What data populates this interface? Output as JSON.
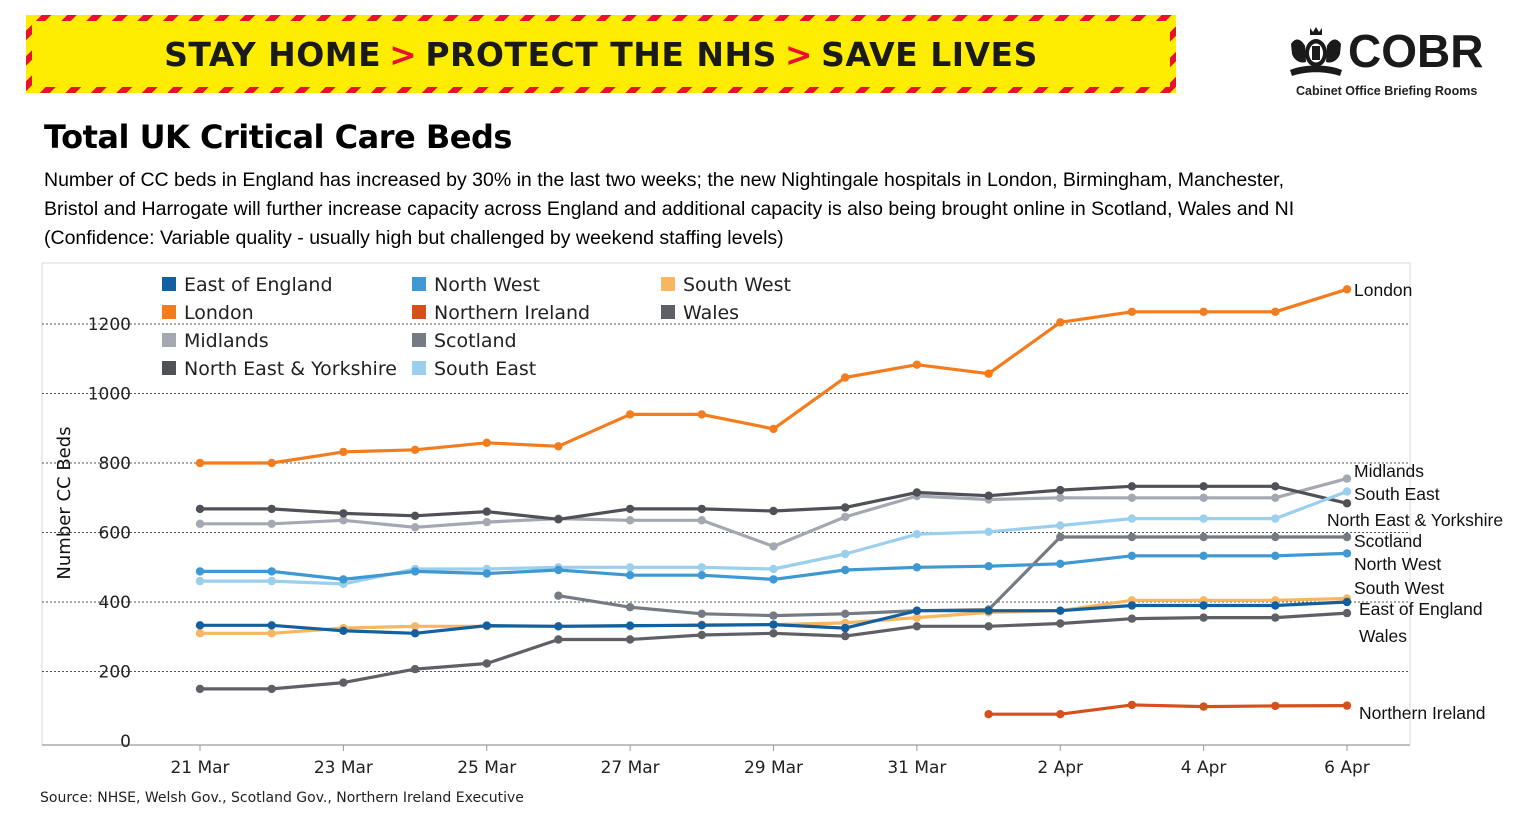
{
  "banner": {
    "part1": "STAY HOME",
    "part2": "PROTECT THE NHS",
    "part3": "SAVE LIVES",
    "separator": ">"
  },
  "logo": {
    "name": "COBR",
    "subtitle": "Cabinet Office Briefing Rooms",
    "icon": "royal-crest-icon"
  },
  "title": "Total UK Critical Care Beds",
  "subtitle": {
    "line1": "Number of CC beds in England has increased by 30% in the last two weeks; the new Nightingale hospitals in London, Birmingham, Manchester,",
    "line2": "Bristol and Harrogate will further increase capacity across England and additional capacity is also being brought online in Scotland, Wales and NI",
    "line3": "(Confidence: Variable quality - usually high but challenged by weekend staffing levels)"
  },
  "source": "Source: NHSE, Welsh Gov., Scotland Gov., Northern Ireland Executive",
  "colors": {
    "banner_yellow": "#ffed00",
    "banner_red": "#e8112d",
    "gridline": "#555555"
  },
  "chart_data": {
    "type": "line",
    "title": "Total UK Critical Care Beds",
    "xlabel": "",
    "ylabel": "Number CC Beds",
    "ylim": [
      -20,
      1330
    ],
    "yticks": [
      0,
      200,
      400,
      600,
      800,
      1000,
      1200
    ],
    "x": [
      "21 Mar",
      "22 Mar",
      "23 Mar",
      "24 Mar",
      "25 Mar",
      "26 Mar",
      "27 Mar",
      "28 Mar",
      "29 Mar",
      "30 Mar",
      "31 Mar",
      "1 Apr",
      "2 Apr",
      "3 Apr",
      "4 Apr",
      "5 Apr",
      "6 Apr"
    ],
    "xtick_labels": [
      "21 Mar",
      "23 Mar",
      "25 Mar",
      "27 Mar",
      "29 Mar",
      "31 Mar",
      "2 Apr",
      "4 Apr",
      "6 Apr"
    ],
    "xtick_indices": [
      0,
      2,
      4,
      6,
      8,
      10,
      12,
      14,
      16
    ],
    "grid": true,
    "legend_position": "top-left",
    "legend": [
      [
        "East of England",
        "North West",
        "South West"
      ],
      [
        "London",
        "Northern Ireland",
        "Wales"
      ],
      [
        "Midlands",
        "Scotland"
      ],
      [
        "North East & Yorkshire",
        "South East"
      ]
    ],
    "series": [
      {
        "name": "South West",
        "color": "#f8b661",
        "end_label": "South West",
        "values": [
          310,
          310,
          325,
          330,
          330,
          330,
          330,
          335,
          335,
          340,
          355,
          370,
          375,
          405,
          405,
          405,
          410
        ]
      },
      {
        "name": "Wales",
        "color": "#5f6066",
        "end_label": "Wales",
        "values": [
          150,
          150,
          168,
          207,
          223,
          292,
          292,
          305,
          310,
          302,
          330,
          330,
          338,
          352,
          355,
          355,
          368
        ]
      },
      {
        "name": "Scotland",
        "color": "#767a83",
        "end_label": "Scotland",
        "values": [
          null,
          null,
          null,
          null,
          null,
          418,
          385,
          366,
          361,
          366,
          375,
          378,
          587,
          587,
          587,
          587,
          587
        ]
      },
      {
        "name": "Northern Ireland",
        "color": "#d5501b",
        "end_label": "Northern Ireland",
        "values": [
          null,
          null,
          null,
          null,
          null,
          null,
          null,
          null,
          null,
          null,
          null,
          77,
          77,
          104,
          99,
          101,
          102
        ]
      },
      {
        "name": "Midlands",
        "color": "#a4a8b1",
        "end_label": "Midlands",
        "values": [
          625,
          625,
          635,
          615,
          630,
          640,
          635,
          635,
          560,
          645,
          705,
          695,
          700,
          700,
          700,
          700,
          755
        ]
      },
      {
        "name": "North East & Yorkshire",
        "color": "#4f5157",
        "end_label": "North East & Yorkshire",
        "values": [
          668,
          668,
          655,
          648,
          660,
          638,
          668,
          668,
          662,
          672,
          715,
          706,
          722,
          733,
          733,
          733,
          684
        ]
      },
      {
        "name": "South East",
        "color": "#9bcfee",
        "end_label": "South East",
        "values": [
          460,
          460,
          452,
          495,
          495,
          500,
          500,
          500,
          495,
          538,
          595,
          602,
          620,
          640,
          640,
          640,
          718
        ]
      },
      {
        "name": "North West",
        "color": "#3e98d3",
        "end_label": "North West",
        "values": [
          488,
          488,
          465,
          488,
          482,
          492,
          477,
          477,
          465,
          492,
          500,
          503,
          510,
          533,
          533,
          533,
          540
        ]
      },
      {
        "name": "East of England",
        "color": "#12609f",
        "end_label": "East of England",
        "values": [
          333,
          333,
          317,
          310,
          332,
          330,
          332,
          333,
          335,
          325,
          375,
          375,
          375,
          390,
          390,
          390,
          400
        ]
      },
      {
        "name": "London",
        "color": "#f47c1c",
        "end_label": "London",
        "values": [
          800,
          800,
          832,
          838,
          858,
          848,
          940,
          940,
          898,
          1046,
          1083,
          1057,
          1205,
          1235,
          1235,
          1235,
          1300
        ]
      }
    ]
  }
}
